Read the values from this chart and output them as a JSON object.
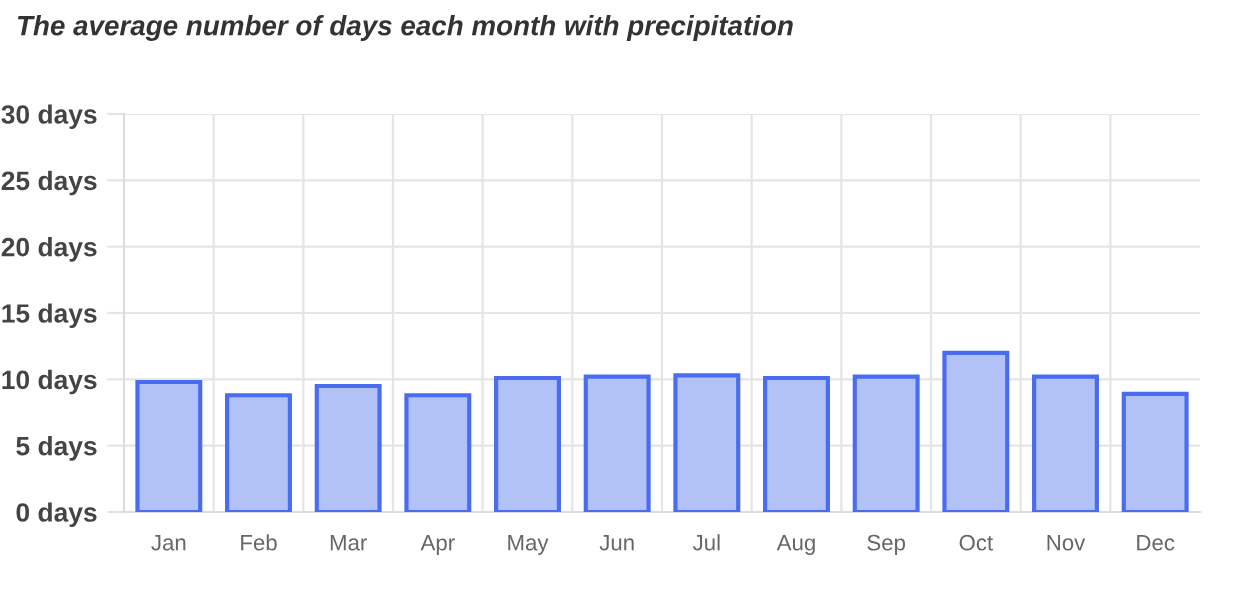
{
  "chart_data": {
    "type": "bar",
    "title": "The average number of days each month with precipitation",
    "categories": [
      "Jan",
      "Feb",
      "Mar",
      "Apr",
      "May",
      "Jun",
      "Jul",
      "Aug",
      "Sep",
      "Oct",
      "Nov",
      "Dec"
    ],
    "series": [
      {
        "color": "#b2c2f6",
        "values": [
          9.8,
          8.8,
          9.5,
          8.8,
          10.1,
          10.2,
          10.3,
          10.1,
          10.2,
          12.0,
          10.2,
          8.9
        ]
      }
    ],
    "ylim": [
      0,
      30
    ],
    "yticks": [
      {
        "value": 0,
        "label": "0 days"
      },
      {
        "value": 5,
        "label": "5 days"
      },
      {
        "value": 10,
        "label": "10 days"
      },
      {
        "value": 15,
        "label": "15 days"
      },
      {
        "value": 20,
        "label": "20 days"
      },
      {
        "value": 25,
        "label": "25 days"
      },
      {
        "value": 30,
        "label": "30 days"
      }
    ],
    "grid": true
  }
}
